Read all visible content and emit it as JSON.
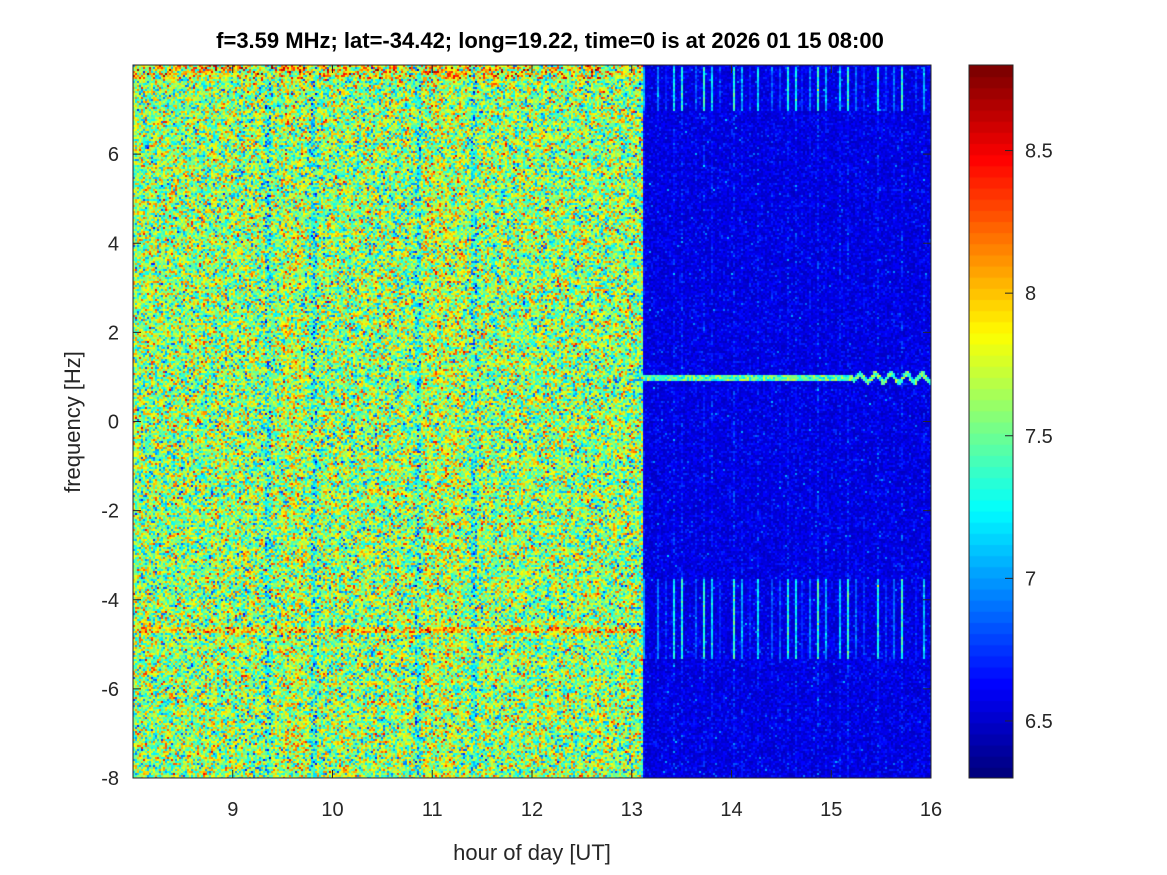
{
  "chart_data": {
    "type": "heatmap",
    "title": "f=3.59 MHz;  lat=-34.42; long=19.22, time=0 is at 2026 01 15 08:00",
    "xlabel": "hour of day [UT]",
    "ylabel": "frequency [Hz]",
    "xlim": [
      8,
      16
    ],
    "ylim": [
      -8,
      8
    ],
    "xticks": [
      9,
      10,
      11,
      12,
      13,
      14,
      15,
      16
    ],
    "yticks": [
      -8,
      -6,
      -4,
      -2,
      0,
      2,
      4,
      6
    ],
    "colormap": "jet",
    "colorbar": {
      "clim": [
        6.3,
        8.8
      ],
      "ticks": [
        6.5,
        7,
        7.5,
        8,
        8.5
      ],
      "tick_labels": [
        "6.5",
        "7",
        "7.5",
        "8",
        "8.5"
      ]
    },
    "regimes": [
      {
        "x_range": [
          8,
          13.1
        ],
        "mean_level": 7.6,
        "spread": 0.35
      },
      {
        "x_range": [
          13.1,
          16
        ],
        "mean_level": 6.45,
        "spread": 0.08
      }
    ],
    "low_level_stripes_hour": [
      9.35,
      9.8,
      10.85,
      11.4
    ],
    "high_level_bands_hour": [
      [
        9.5,
        9.7
      ],
      [
        10.9,
        11.3
      ]
    ],
    "horizontal_lines_hz": [
      -4.65,
      1.0,
      7.8
    ],
    "periodic_streak_interval_hour": 0.076,
    "streak_bands_hz": [
      [
        7.0,
        8.0
      ],
      [
        -5.3,
        -3.5
      ]
    ]
  }
}
